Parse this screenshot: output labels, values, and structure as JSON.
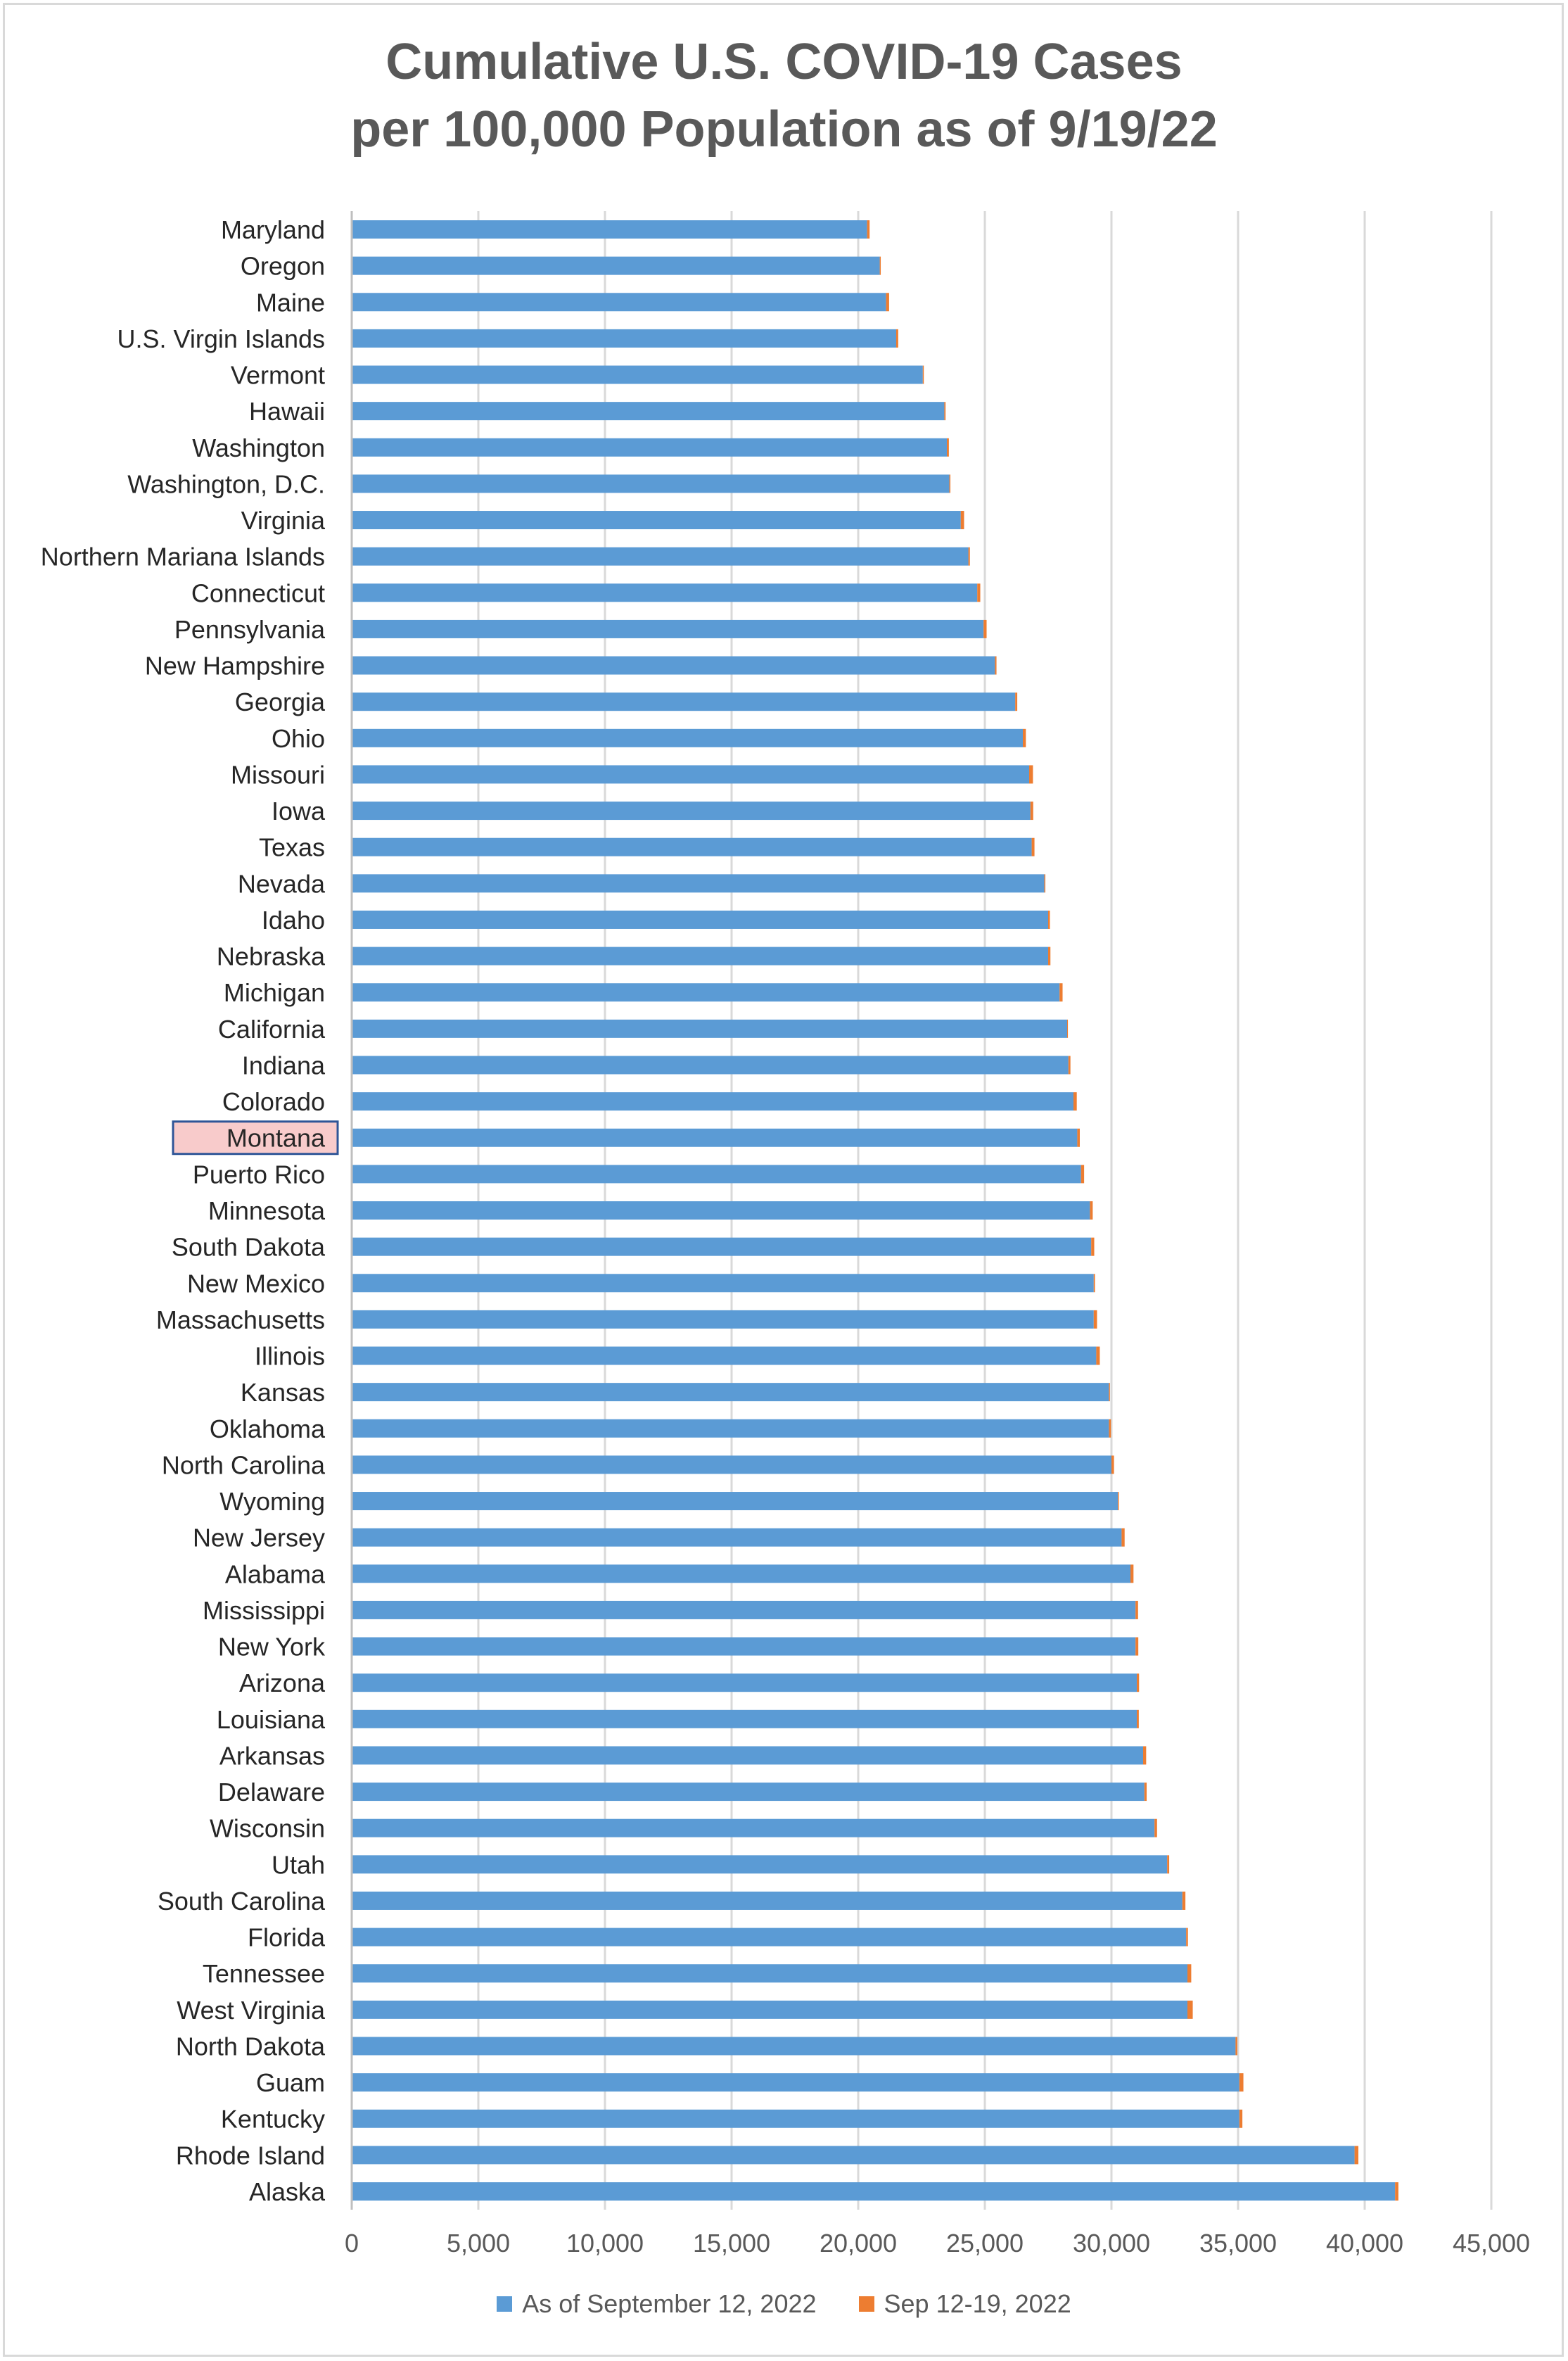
{
  "chart_data": {
    "type": "bar",
    "orientation": "horizontal",
    "stacked": true,
    "title": [
      "Cumulative U.S. COVID-19 Cases",
      "per 100,000 Population as of 9/19/22"
    ],
    "categories": [
      "Maryland",
      "Oregon",
      "Maine",
      "U.S. Virgin Islands",
      "Vermont",
      "Hawaii",
      "Washington",
      "Washington, D.C.",
      "Virginia",
      "Northern Mariana Islands",
      "Connecticut",
      "Pennsylvania",
      "New Hampshire",
      "Georgia",
      "Ohio",
      "Missouri",
      "Iowa",
      "Texas",
      "Nevada",
      "Idaho",
      "Nebraska",
      "Michigan",
      "California",
      "Indiana",
      "Colorado",
      "Montana",
      "Puerto Rico",
      "Minnesota",
      "South Dakota",
      "New Mexico",
      "Massachusetts",
      "Illinois",
      "Kansas",
      "Oklahoma",
      "North Carolina",
      "Wyoming",
      "New Jersey",
      "Alabama",
      "Mississippi",
      "New York",
      "Arizona",
      "Louisiana",
      "Arkansas",
      "Delaware",
      "Wisconsin",
      "Utah",
      "South Carolina",
      "Florida",
      "Tennessee",
      "West Virginia",
      "North Dakota",
      "Guam",
      "Kentucky",
      "Rhode Island",
      "Alaska"
    ],
    "highlight_category": "Montana",
    "series": [
      {
        "name": "As of September 12, 2022",
        "color": "#5b9bd5",
        "values": [
          20350,
          20850,
          21100,
          21500,
          22550,
          23400,
          23500,
          23600,
          24050,
          24350,
          24700,
          24950,
          25400,
          26200,
          26500,
          26750,
          26800,
          26850,
          27350,
          27500,
          27500,
          27950,
          28250,
          28300,
          28500,
          28650,
          28800,
          29150,
          29200,
          29300,
          29300,
          29400,
          29900,
          29900,
          30000,
          30250,
          30400,
          30750,
          30950,
          30950,
          31000,
          31000,
          31250,
          31300,
          31700,
          32200,
          32800,
          32950,
          33000,
          33000,
          34900,
          35050,
          35050,
          39600,
          41200
        ]
      },
      {
        "name": "Sep 12-19, 2022",
        "color": "#ed7d31",
        "values": [
          100,
          40,
          120,
          80,
          40,
          50,
          80,
          40,
          130,
          60,
          120,
          120,
          60,
          80,
          120,
          150,
          110,
          110,
          40,
          70,
          90,
          120,
          30,
          80,
          130,
          100,
          120,
          110,
          120,
          50,
          130,
          140,
          40,
          80,
          100,
          40,
          120,
          120,
          100,
          110,
          90,
          80,
          120,
          90,
          100,
          80,
          120,
          70,
          150,
          210,
          70,
          160,
          120,
          150,
          130
        ]
      }
    ],
    "x_axis": {
      "range": [
        0,
        45000
      ],
      "tick_values": [
        0,
        5000,
        10000,
        15000,
        20000,
        25000,
        30000,
        35000,
        40000,
        45000
      ],
      "tick_labels": [
        "0",
        "5,000",
        "10,000",
        "15,000",
        "20,000",
        "25,000",
        "30,000",
        "35,000",
        "40,000",
        "45,000"
      ]
    },
    "grid": true,
    "legend_position": "bottom"
  }
}
